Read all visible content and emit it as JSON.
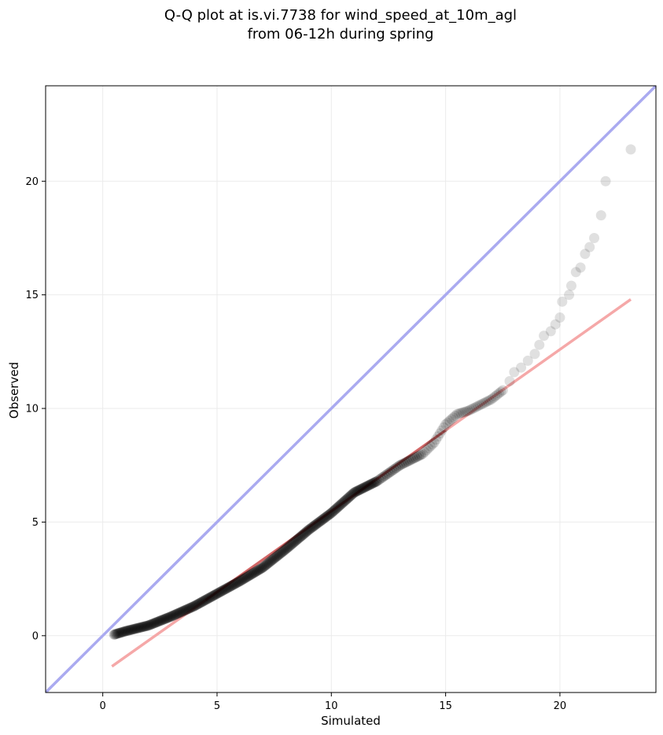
{
  "chart_data": {
    "type": "scatter",
    "title": [
      "Q-Q plot at is.vi.7738 for wind_speed_at_10m_agl",
      "from 06-12h during spring"
    ],
    "xlabel": "Simulated",
    "ylabel": "Observed",
    "xlim": [
      -2.5,
      24.2
    ],
    "ylim": [
      -2.5,
      24.2
    ],
    "xticks": [
      0,
      5,
      10,
      15,
      20
    ],
    "yticks": [
      0,
      5,
      10,
      15,
      20
    ],
    "grid": true,
    "colors": {
      "points": "#000000",
      "identity_line": "#aaaaf0",
      "fit_line": "#f5a8a8",
      "fit_line_dense": "#b03030",
      "grid": "#ebebeb"
    },
    "identity_line": {
      "x": [
        -2.5,
        24.2
      ],
      "y": [
        -2.5,
        24.2
      ]
    },
    "fit_line": {
      "x": [
        0.4,
        23.1
      ],
      "y": [
        -1.35,
        14.8
      ]
    },
    "quantile_curve": {
      "x": [
        0.5,
        1.0,
        2.0,
        3.0,
        4.0,
        5.0,
        6.0,
        7.0,
        8.0,
        9.0,
        10.0,
        11.0,
        12.0,
        13.0,
        14.0,
        14.5,
        15.0,
        15.5,
        16.0,
        17.0,
        17.5
      ],
      "y": [
        0.05,
        0.2,
        0.45,
        0.85,
        1.3,
        1.85,
        2.4,
        3.0,
        3.8,
        4.65,
        5.4,
        6.3,
        6.8,
        7.5,
        8.0,
        8.5,
        9.3,
        9.75,
        9.9,
        10.4,
        10.8
      ]
    },
    "tail_points": {
      "x": [
        17.8,
        18.0,
        18.3,
        18.6,
        18.9,
        19.1,
        19.3,
        19.6,
        19.8,
        20.0,
        20.1,
        20.4,
        20.5,
        20.7,
        20.9,
        21.1,
        21.3,
        21.5,
        21.8,
        22.0,
        23.1
      ],
      "y": [
        11.2,
        11.6,
        11.8,
        12.1,
        12.4,
        12.8,
        13.2,
        13.4,
        13.7,
        14.0,
        14.7,
        15.0,
        15.4,
        16.0,
        16.2,
        16.8,
        17.1,
        17.5,
        18.5,
        20.0,
        21.4
      ]
    }
  }
}
